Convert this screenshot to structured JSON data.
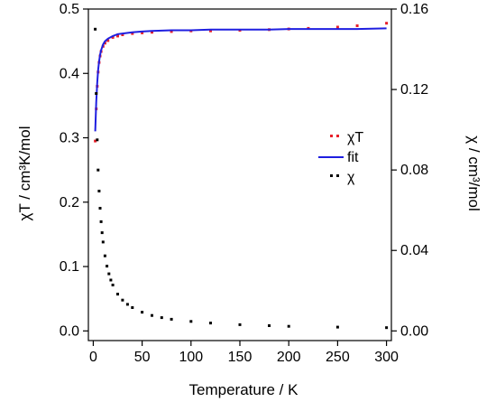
{
  "chart_data": {
    "type": "scatter",
    "title": "",
    "xlabel": "Temperature  /  K",
    "ylabel_left": "χT  /  cm³K/mol",
    "ylabel_right": "χ  /  cm³/mol",
    "xlim": [
      -5,
      305
    ],
    "ylim_left": [
      -0.015,
      0.5
    ],
    "ylim_right": [
      -0.0048,
      0.16
    ],
    "x_ticks": [
      0,
      50,
      100,
      150,
      200,
      250,
      300
    ],
    "x_tick_labels": [
      "0",
      "50",
      "100",
      "150",
      "200",
      "250",
      "300"
    ],
    "y_left_ticks": [
      0.0,
      0.1,
      0.2,
      0.3,
      0.4,
      0.5
    ],
    "y_left_tick_labels": [
      "0.0",
      "0.1",
      "0.2",
      "0.3",
      "0.4",
      "0.5"
    ],
    "y_right_ticks": [
      0.0,
      0.04,
      0.08,
      0.12,
      0.16
    ],
    "y_right_tick_labels": [
      "0.00",
      "0.04",
      "0.08",
      "0.12",
      "0.16"
    ],
    "grid": false,
    "legend_position": "center-right",
    "series": [
      {
        "name": "χT",
        "axis": "left",
        "style": "markers",
        "color": "#e8202a",
        "x": [
          2,
          3,
          4,
          5,
          6,
          7,
          8,
          10,
          12,
          15,
          20,
          25,
          30,
          40,
          50,
          60,
          80,
          100,
          120,
          150,
          180,
          200,
          220,
          250,
          270,
          300
        ],
        "y": [
          0.295,
          0.345,
          0.38,
          0.402,
          0.417,
          0.427,
          0.434,
          0.442,
          0.447,
          0.451,
          0.456,
          0.458,
          0.46,
          0.462,
          0.463,
          0.464,
          0.465,
          0.466,
          0.466,
          0.467,
          0.468,
          0.469,
          0.47,
          0.472,
          0.474,
          0.478
        ]
      },
      {
        "name": "fit",
        "axis": "left",
        "style": "line",
        "color": "#1f1fe0",
        "x": [
          2,
          3,
          4,
          5,
          6,
          7,
          8,
          10,
          12,
          15,
          20,
          25,
          30,
          40,
          50,
          60,
          80,
          100,
          120,
          150,
          180,
          200,
          220,
          250,
          270,
          300
        ],
        "y": [
          0.31,
          0.355,
          0.385,
          0.405,
          0.419,
          0.429,
          0.436,
          0.445,
          0.45,
          0.454,
          0.458,
          0.461,
          0.462,
          0.464,
          0.465,
          0.466,
          0.467,
          0.467,
          0.468,
          0.468,
          0.468,
          0.469,
          0.469,
          0.469,
          0.469,
          0.47
        ]
      },
      {
        "name": "χ",
        "axis": "right",
        "style": "markers",
        "color": "#000000",
        "x": [
          2,
          3,
          4,
          5,
          6,
          7,
          8,
          9,
          10,
          12,
          14,
          16,
          18,
          20,
          25,
          30,
          35,
          40,
          50,
          60,
          70,
          80,
          100,
          120,
          150,
          180,
          200,
          250,
          300
        ],
        "y": [
          0.15,
          0.118,
          0.095,
          0.08,
          0.0695,
          0.061,
          0.0543,
          0.0488,
          0.0442,
          0.0373,
          0.0322,
          0.0284,
          0.0253,
          0.0228,
          0.0183,
          0.0153,
          0.0132,
          0.0116,
          0.0093,
          0.0077,
          0.0066,
          0.0058,
          0.0047,
          0.0039,
          0.0031,
          0.0026,
          0.0023,
          0.0019,
          0.0016
        ]
      }
    ]
  }
}
